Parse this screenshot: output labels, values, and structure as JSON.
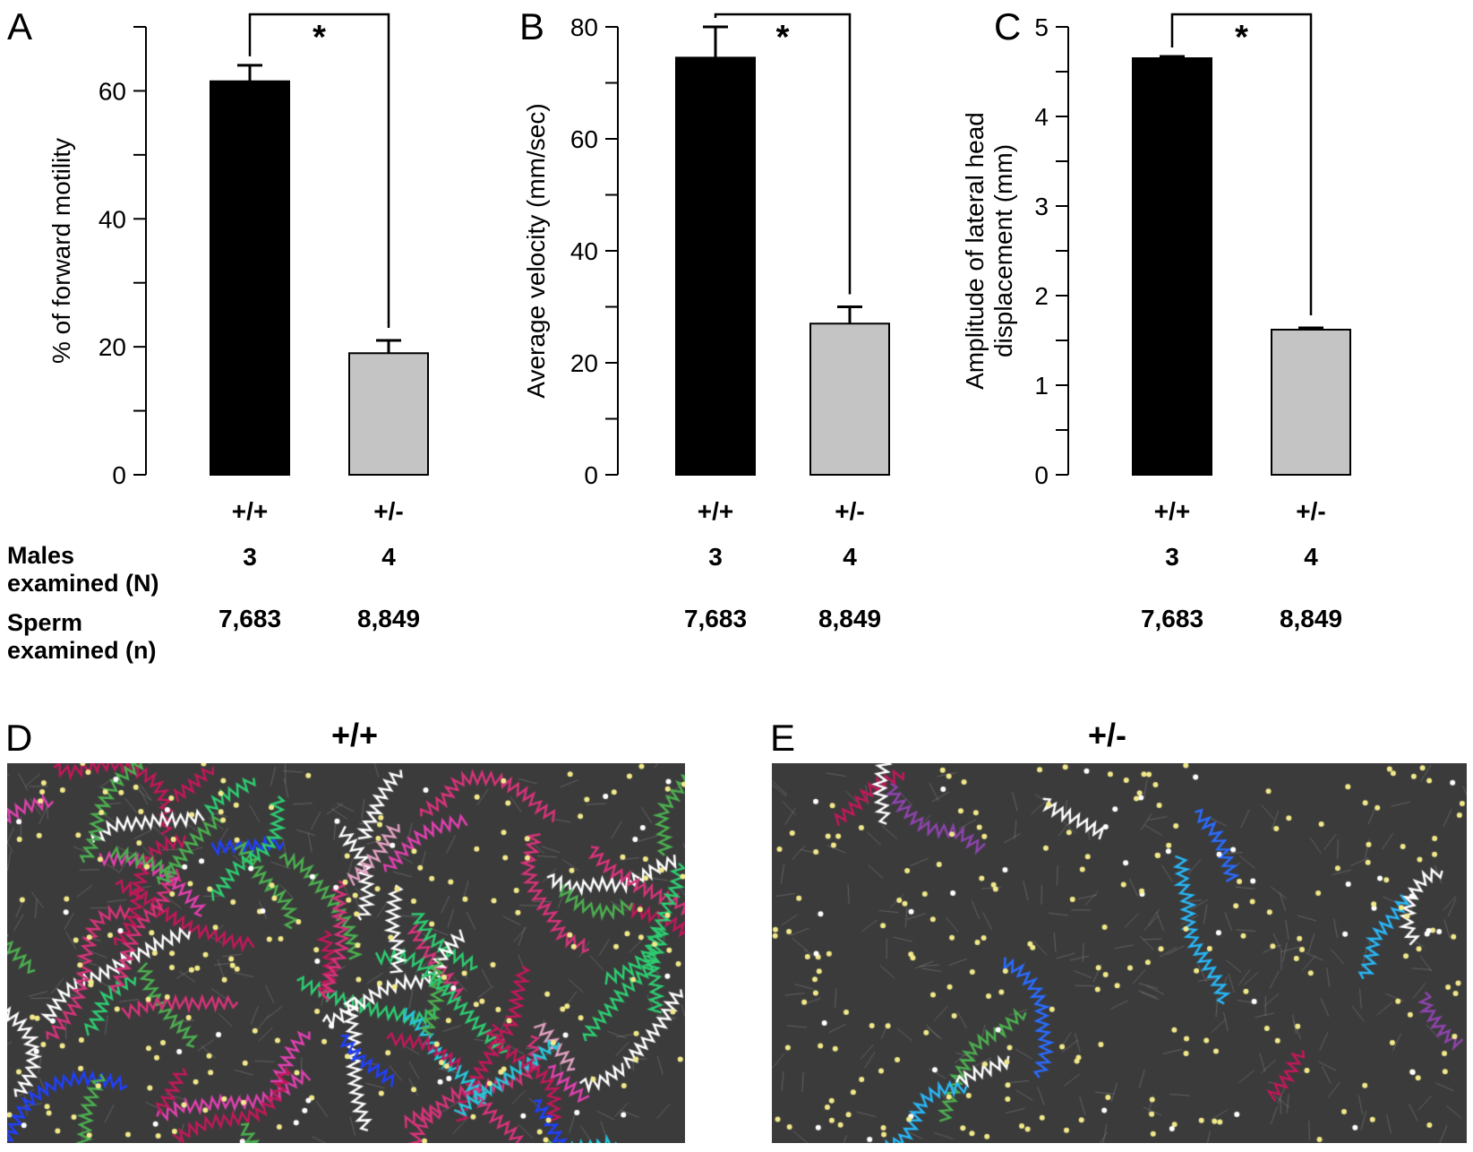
{
  "panels": {
    "A": {
      "letter": "A"
    },
    "B": {
      "letter": "B"
    },
    "C": {
      "letter": "C"
    },
    "D": {
      "letter": "D",
      "title": "+/+"
    },
    "E": {
      "letter": "E",
      "title": "+/-"
    }
  },
  "row_labels": {
    "males": [
      "Males",
      "examined (N)"
    ],
    "sperm": [
      "Sperm",
      "examined (n)"
    ]
  },
  "chart_data": [
    {
      "type": "bar",
      "panel": "A",
      "categories": [
        "+/+",
        "+/-"
      ],
      "values": [
        61.5,
        19
      ],
      "errors": [
        2.5,
        2
      ],
      "ylabel": "% of forward motility",
      "ylim": [
        0,
        70
      ],
      "yticks": [
        0,
        20,
        40,
        60
      ],
      "significance": "*",
      "bar_colors": [
        "#000000",
        "#c4c4c4"
      ],
      "males_examined": [
        "3",
        "4"
      ],
      "sperm_examined": [
        "7,683",
        "8,849"
      ]
    },
    {
      "type": "bar",
      "panel": "B",
      "categories": [
        "+/+",
        "+/-"
      ],
      "values": [
        74.5,
        27
      ],
      "errors": [
        5.5,
        3
      ],
      "ylabel": "Average velocity (mm/sec)",
      "ylim": [
        0,
        80
      ],
      "yticks": [
        0,
        20,
        40,
        60,
        80
      ],
      "significance": "*",
      "bar_colors": [
        "#000000",
        "#c4c4c4"
      ],
      "males_examined": [
        "3",
        "4"
      ],
      "sperm_examined": [
        "7,683",
        "8,849"
      ]
    },
    {
      "type": "bar",
      "panel": "C",
      "categories": [
        "+/+",
        "+/-"
      ],
      "values": [
        4.65,
        1.62
      ],
      "errors": [
        0.02,
        0.02
      ],
      "ylabel": [
        "Amplitude of lateral head",
        "displacement (mm)"
      ],
      "ylim": [
        0,
        5
      ],
      "yticks": [
        0,
        1,
        2,
        3,
        4,
        5
      ],
      "significance": "*",
      "bar_colors": [
        "#000000",
        "#c4c4c4"
      ],
      "males_examined": [
        "3",
        "4"
      ],
      "sperm_examined": [
        "7,683",
        "8,849"
      ]
    }
  ]
}
